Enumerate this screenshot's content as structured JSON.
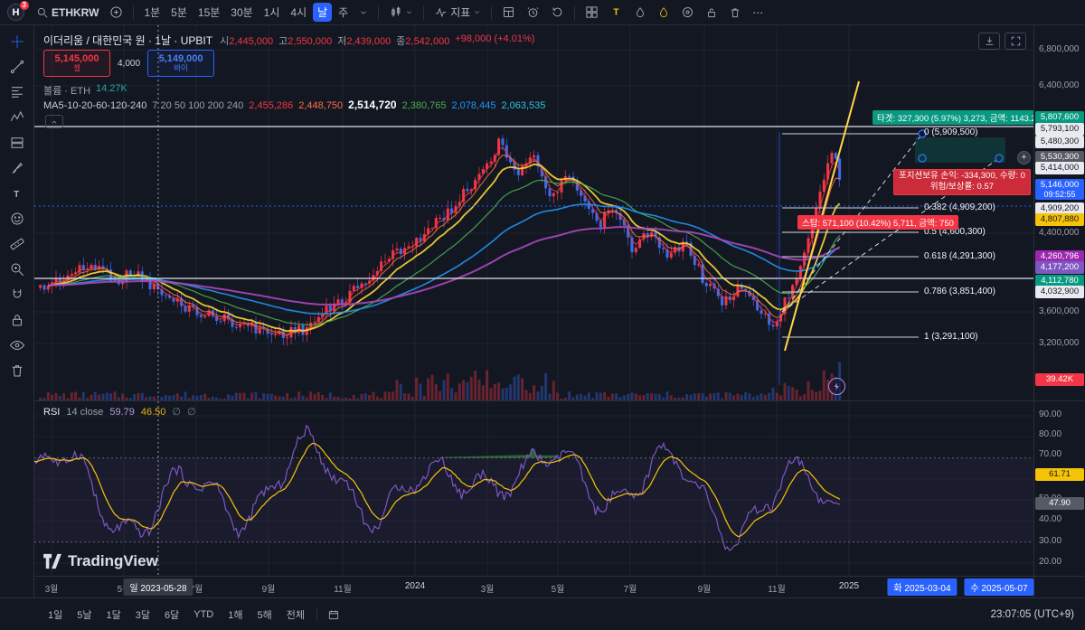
{
  "icons": {
    "plus": "+",
    "more": "⋯",
    "t": "T",
    "caret": "∨"
  },
  "topbar": {
    "avatar": "H",
    "badge": "3",
    "symbol": "ETHKRW",
    "intervals": [
      "1분",
      "5분",
      "15분",
      "30분",
      "1시",
      "4시",
      "날",
      "주"
    ],
    "indicators": "지표"
  },
  "header": {
    "title": "이더리움 / 대한민국 원 · 1날 · UPBIT",
    "o_label": "시",
    "o": "2,445,000",
    "h_label": "고",
    "h": "2,550,000",
    "l_label": "저",
    "l": "2,439,000",
    "c_label": "종",
    "c": "2,542,000",
    "change": "+98,000 (+4.01%)",
    "sell_price": "5,145,000",
    "sell_label": "셀",
    "spread": "4,000",
    "buy_price": "5,149,000",
    "buy_label": "바이",
    "volume_label": "볼륨 · ETH",
    "volume_value": "14.27K",
    "ma_label": "MA5-10-20-60-120-240",
    "ma_params": "7 20 50 100 200 240",
    "ma_values": [
      "2,455,286",
      "2,448,750",
      "2,514,720",
      "2,380,765",
      "2,078,445",
      "2,063,535"
    ]
  },
  "annotations": {
    "target": "타겟: 327,300 (5.97%) 3,273, 금액: 1143.2",
    "position_line1": "포지션보유 손익: -334,300, 수량: 0",
    "position_line2": "위험/보상률: 0.57",
    "stop": "스탑: 571,100 (10.42%) 5,711, 금액: 750",
    "fib_labels": [
      "0 (5,909,500)",
      "0.382 (4,909,200)",
      "0.5 (4,600,300)",
      "0.618 (4,291,300)",
      "0.786 (3,851,400)",
      "1 (3,291,100)"
    ]
  },
  "price_scale": {
    "labels": [
      {
        "text": "6,800,000",
        "type": "plain"
      },
      {
        "text": "6,400,000",
        "type": "plain"
      },
      {
        "text": "5,807,600",
        "type": "green"
      },
      {
        "text": "5,793,100",
        "type": "white"
      },
      {
        "text": "5,480,300",
        "type": "white"
      },
      {
        "text": "5,530,300",
        "type": "gray"
      },
      {
        "text": "5,414,000",
        "type": "white"
      },
      {
        "text": "5,146,000",
        "type": "blue"
      },
      {
        "text": "09:52:55",
        "type": "countdown"
      },
      {
        "text": "4,909,200",
        "type": "white"
      },
      {
        "text": "4,807,880",
        "type": "yellow"
      },
      {
        "text": "4,400,000",
        "type": "plain"
      },
      {
        "text": "4,260,796",
        "type": "purple"
      },
      {
        "text": "4,177,200",
        "type": "purple2"
      },
      {
        "text": "4,112,780",
        "type": "green"
      },
      {
        "text": "4,032,900",
        "type": "white"
      },
      {
        "text": "3,600,000",
        "type": "plain"
      },
      {
        "text": "3,200,000",
        "type": "plain"
      },
      {
        "text": "39.42K",
        "type": "red"
      }
    ],
    "rsi_labels": [
      {
        "text": "90.00",
        "type": "plain"
      },
      {
        "text": "80.00",
        "type": "plain"
      },
      {
        "text": "70.00",
        "type": "plain"
      },
      {
        "text": "61.71",
        "type": "yellow"
      },
      {
        "text": "50.00",
        "type": "plain"
      },
      {
        "text": "47.90",
        "type": "gray"
      },
      {
        "text": "40.00",
        "type": "plain"
      },
      {
        "text": "30.00",
        "type": "plain"
      },
      {
        "text": "20.00",
        "type": "plain"
      }
    ]
  },
  "rsi": {
    "name": "RSI",
    "params": "14 close",
    "v1": "59.79",
    "v2": "46.50",
    "extra1": "∅",
    "extra2": "∅"
  },
  "watermark": "TradingView",
  "time_axis": {
    "ticks": [
      "3월",
      "5월",
      "7월",
      "9월",
      "11월",
      "2024",
      "3월",
      "5월",
      "7월",
      "9월",
      "11월",
      "2025"
    ],
    "crosshair_date": "일 2023-05-28",
    "anchor_date_1": "화 2025-03-04",
    "anchor_date_2": "수 2025-05-07"
  },
  "bottom_bar": {
    "ranges": [
      "1일",
      "5날",
      "1달",
      "3달",
      "6달",
      "YTD",
      "1해",
      "5해",
      "전체"
    ],
    "clock": "23:07:05 (UTC+9)"
  },
  "colors": {
    "up": "#f23645",
    "down": "#3d6bf0",
    "accent": "#2962ff",
    "ma": [
      "#f23645",
      "#ff7043",
      "#fdd835",
      "#4caf50",
      "#2196f3",
      "#ab47bc"
    ],
    "rsi_line": "#7e57c2",
    "rsi_ma": "#f6c309",
    "projection": "#ffd54a"
  },
  "chart": {
    "bars": 205,
    "keypoints": [
      [
        0.0,
        295
      ],
      [
        0.03,
        278
      ],
      [
        0.06,
        265
      ],
      [
        0.085,
        282
      ],
      [
        0.1,
        272
      ],
      [
        0.13,
        300
      ],
      [
        0.165,
        318
      ],
      [
        0.2,
        328
      ],
      [
        0.24,
        342
      ],
      [
        0.27,
        336
      ],
      [
        0.3,
        310
      ],
      [
        0.33,
        285
      ],
      [
        0.36,
        252
      ],
      [
        0.39,
        232
      ],
      [
        0.42,
        200
      ],
      [
        0.44,
        172
      ],
      [
        0.455,
        148
      ],
      [
        0.468,
        126
      ],
      [
        0.48,
        165
      ],
      [
        0.5,
        140
      ],
      [
        0.515,
        196
      ],
      [
        0.53,
        168
      ],
      [
        0.545,
        184
      ],
      [
        0.563,
        222
      ],
      [
        0.58,
        202
      ],
      [
        0.6,
        250
      ],
      [
        0.615,
        226
      ],
      [
        0.632,
        258
      ],
      [
        0.653,
        240
      ],
      [
        0.67,
        282
      ],
      [
        0.69,
        308
      ],
      [
        0.705,
        288
      ],
      [
        0.717,
        304
      ],
      [
        0.73,
        320
      ],
      [
        0.74,
        334
      ],
      [
        0.755,
        298
      ],
      [
        0.768,
        258
      ],
      [
        0.78,
        212
      ],
      [
        0.792,
        162
      ],
      [
        0.8,
        128
      ],
      [
        0.806,
        176
      ]
    ]
  }
}
